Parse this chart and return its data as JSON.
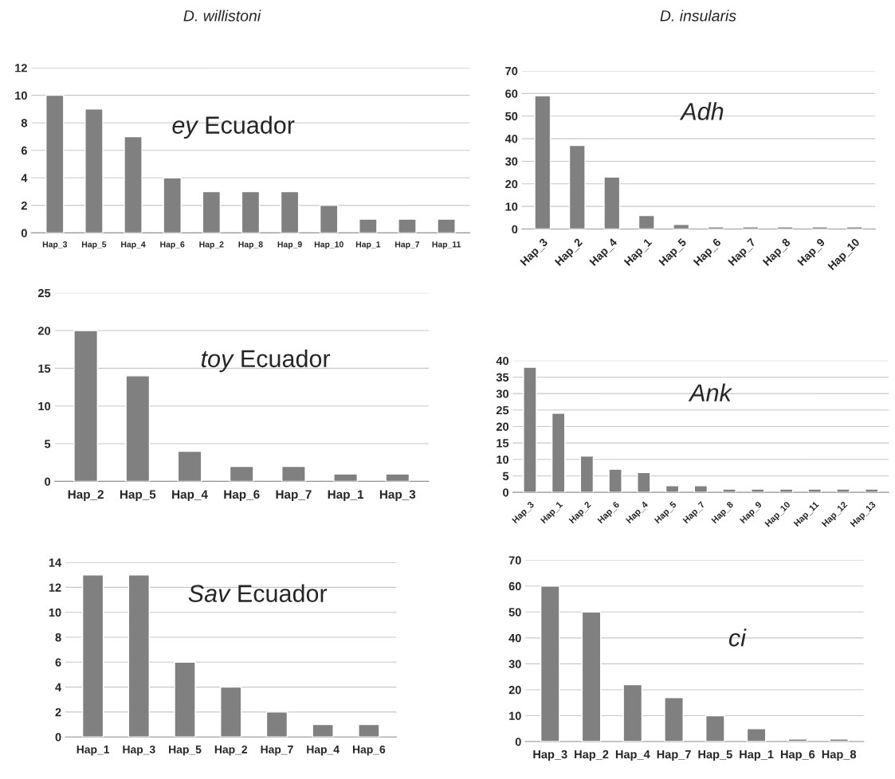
{
  "chart_data": [
    {
      "type": "bar",
      "subtitle": "D. willistoni",
      "title": "ey Ecuador",
      "categories": [
        "Hap_3",
        "Hap_5",
        "Hap_4",
        "Hap_6",
        "Hap_2",
        "Hap_8",
        "Hap_9",
        "Hap_10",
        "Hap_1",
        "Hap_7",
        "Hap_11"
      ],
      "values": [
        10,
        9,
        7,
        4,
        3,
        3,
        3,
        2,
        1,
        1,
        1
      ],
      "color": "#808080",
      "ylim": [
        0,
        12
      ],
      "yticks": [
        0,
        2,
        4,
        6,
        8,
        10,
        12
      ],
      "grid": "y"
    },
    {
      "type": "bar",
      "subtitle": "D. insularis",
      "title": "Adh",
      "categories": [
        "Hap_3",
        "Hap_2",
        "Hap_4",
        "Hap_1",
        "Hap_5",
        "Hap_6",
        "Hap_7",
        "Hap_8",
        "Hap_9",
        "Hap_10"
      ],
      "values": [
        59,
        37,
        23,
        6,
        2,
        1,
        1,
        1,
        1,
        1
      ],
      "color": "#808080",
      "ylim": [
        0,
        70
      ],
      "yticks": [
        0,
        10,
        20,
        30,
        40,
        50,
        60,
        70
      ],
      "grid": "y"
    },
    {
      "type": "bar",
      "title": "toy Ecuador",
      "categories": [
        "Hap_2",
        "Hap_5",
        "Hap_4",
        "Hap_6",
        "Hap_7",
        "Hap_1",
        "Hap_3"
      ],
      "values": [
        20,
        14,
        4,
        2,
        2,
        1,
        1
      ],
      "color": "#808080",
      "ylim": [
        0,
        25
      ],
      "yticks": [
        0,
        5,
        10,
        15,
        20,
        25
      ],
      "grid": "y"
    },
    {
      "type": "bar",
      "title": "Ank",
      "categories": [
        "Hap_3",
        "Hap_1",
        "Hap_2",
        "Hap_6",
        "Hap_4",
        "Hap_5",
        "Hap_7",
        "Hap_8",
        "Hap_9",
        "Hap_10",
        "Hap_11",
        "Hap_12",
        "Hap_13"
      ],
      "values": [
        38,
        24,
        11,
        7,
        6,
        2,
        2,
        1,
        1,
        1,
        1,
        1,
        1
      ],
      "color": "#808080",
      "ylim": [
        0,
        40
      ],
      "yticks": [
        0,
        5,
        10,
        15,
        20,
        25,
        30,
        35,
        40
      ],
      "grid": "y"
    },
    {
      "type": "bar",
      "title": "Sav Ecuador",
      "categories": [
        "Hap_1",
        "Hap_3",
        "Hap_5",
        "Hap_2",
        "Hap_7",
        "Hap_4",
        "Hap_6"
      ],
      "values": [
        13,
        13,
        6,
        4,
        2,
        1,
        1
      ],
      "color": "#808080",
      "ylim": [
        0,
        14
      ],
      "yticks": [
        0,
        2,
        4,
        6,
        8,
        10,
        12,
        14
      ],
      "grid": "y"
    },
    {
      "type": "bar",
      "title": "ci",
      "categories": [
        "Hap_3",
        "Hap_2",
        "Hap_4",
        "Hap_7",
        "Hap_5",
        "Hap_1",
        "Hap_6",
        "Hap_8"
      ],
      "values": [
        60,
        50,
        22,
        17,
        10,
        5,
        1,
        1
      ],
      "color": "#808080",
      "ylim": [
        0,
        70
      ],
      "yticks": [
        0,
        10,
        20,
        30,
        40,
        50,
        60,
        70
      ],
      "grid": "y"
    }
  ]
}
